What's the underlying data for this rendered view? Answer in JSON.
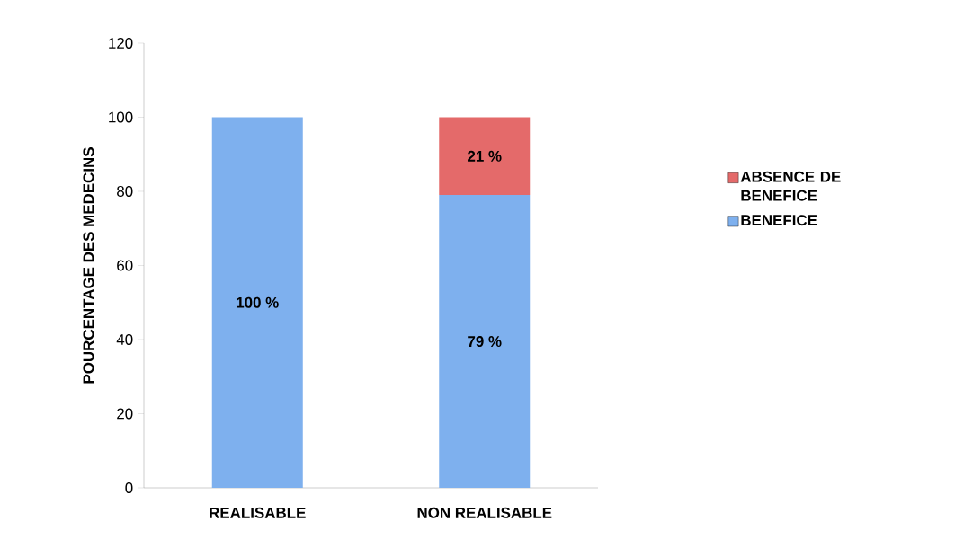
{
  "chart_data": {
    "type": "bar",
    "stacked": true,
    "ylabel": "POURCENTAGE DES MEDECINS",
    "categories": [
      "REALISABLE",
      "NON REALISABLE"
    ],
    "series": [
      {
        "name": "BENEFICE",
        "color": "#7eb0ee",
        "values": [
          100,
          79
        ],
        "value_labels": [
          "100 %",
          "79 %"
        ]
      },
      {
        "name": "ABSENCE DE BENEFICE",
        "color": "#e46a6a",
        "values": [
          0,
          21
        ],
        "value_labels": [
          null,
          "21 %"
        ]
      }
    ],
    "ylim": [
      0,
      120
    ],
    "yticks": [
      0,
      20,
      40,
      60,
      80,
      100,
      120
    ],
    "legend": "right",
    "grid": false
  }
}
